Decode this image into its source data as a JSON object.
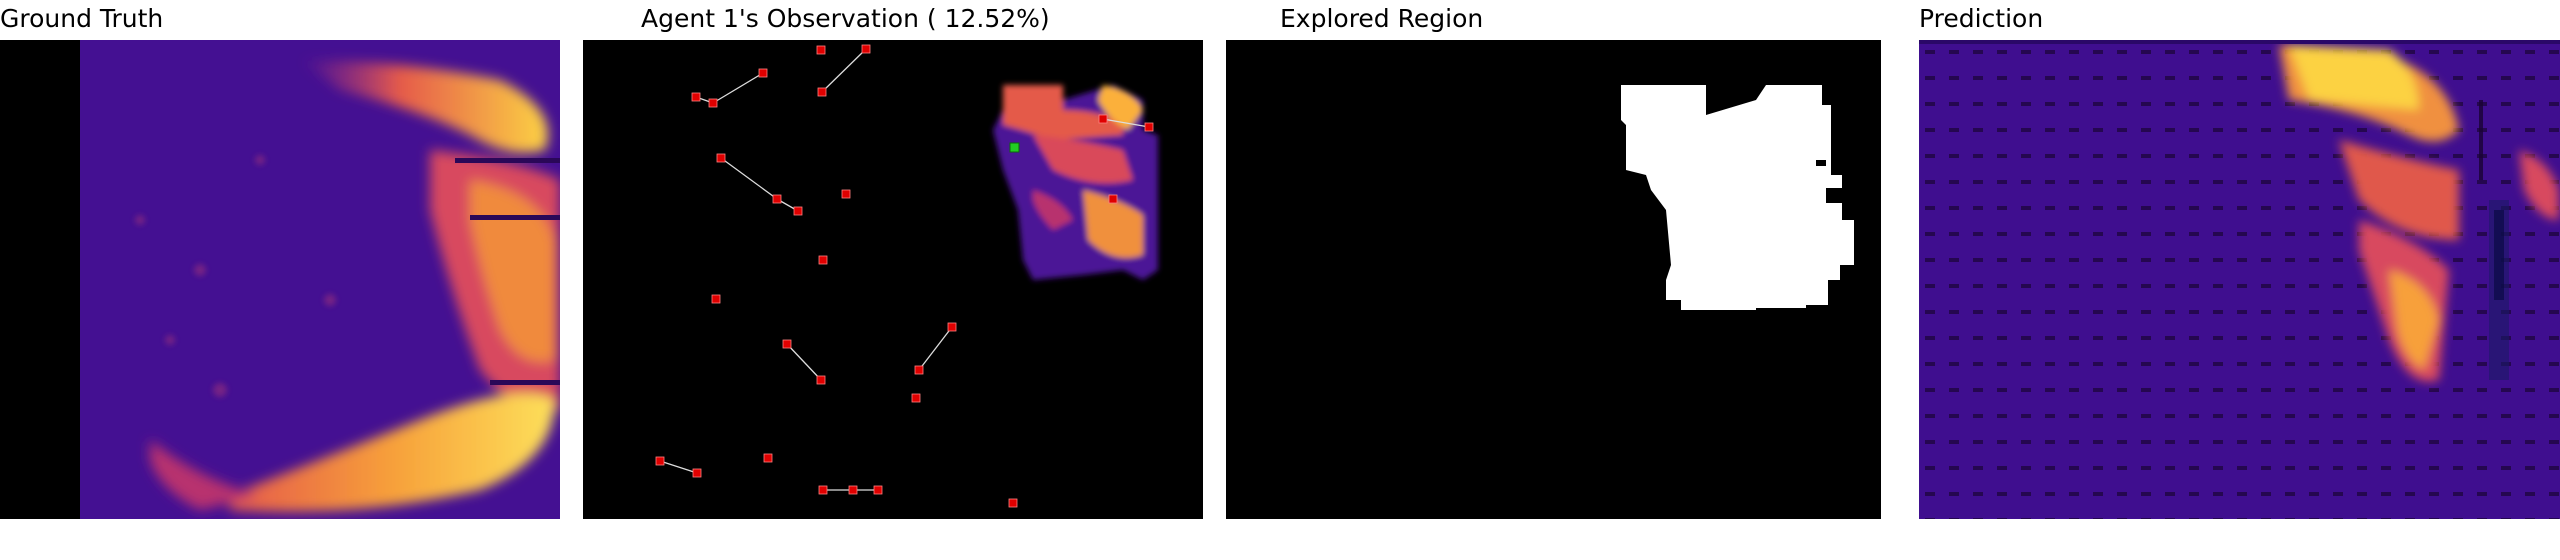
{
  "titles": {
    "ground_truth": "Ground Truth",
    "observation": "Agent 1's Observation ( 12.52%)",
    "explored": "Explored Region",
    "prediction": "Prediction"
  },
  "colors": {
    "background": "#000000",
    "field_low": "#3a0a8c",
    "field_mid": "#c2327a",
    "field_high": "#fcd243",
    "agent_marker": "#e00000",
    "current_agent": "#22cc22",
    "comm_link": "#dddddd",
    "explored_mask": "#ffffff"
  }
}
